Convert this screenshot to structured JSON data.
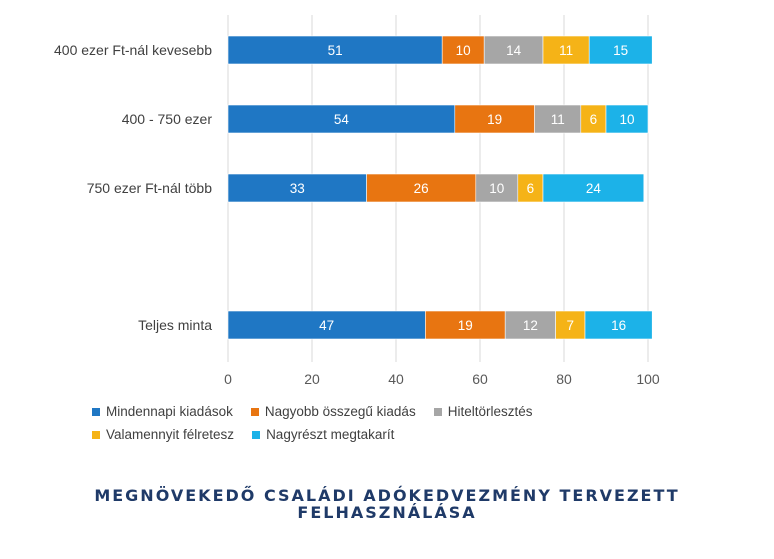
{
  "chart_data": {
    "type": "bar",
    "orientation": "horizontal",
    "stacked": true,
    "categories": [
      "400 ezer Ft-nál kevesebb",
      "400 - 750 ezer",
      "750 ezer Ft-nál több",
      "Teljes minta"
    ],
    "series": [
      {
        "name": "Mindennapi kiadások",
        "color": "#1f77c4",
        "values": [
          51,
          54,
          33,
          47
        ]
      },
      {
        "name": "Nagyobb összegű kiadás",
        "color": "#e87511",
        "values": [
          10,
          19,
          26,
          19
        ]
      },
      {
        "name": "Hiteltörlesztés",
        "color": "#a6a6a6",
        "values": [
          14,
          11,
          10,
          12
        ]
      },
      {
        "name": "Valamennyit félretesz",
        "color": "#f5b317",
        "values": [
          11,
          6,
          6,
          7
        ]
      },
      {
        "name": "Nagyrészt megtakarít",
        "color": "#1cb2e8",
        "values": [
          15,
          10,
          24,
          16
        ]
      }
    ],
    "xlim": [
      0,
      100
    ],
    "xticks": [
      0,
      20,
      40,
      60,
      80,
      100
    ],
    "grid": "vertical",
    "legend_position": "bottom",
    "title": "MEGNÖVEKEDŐ CSALÁDI ADÓKEDVEZMÉNY TERVEZETT FELHASZNÁLÁSA"
  }
}
